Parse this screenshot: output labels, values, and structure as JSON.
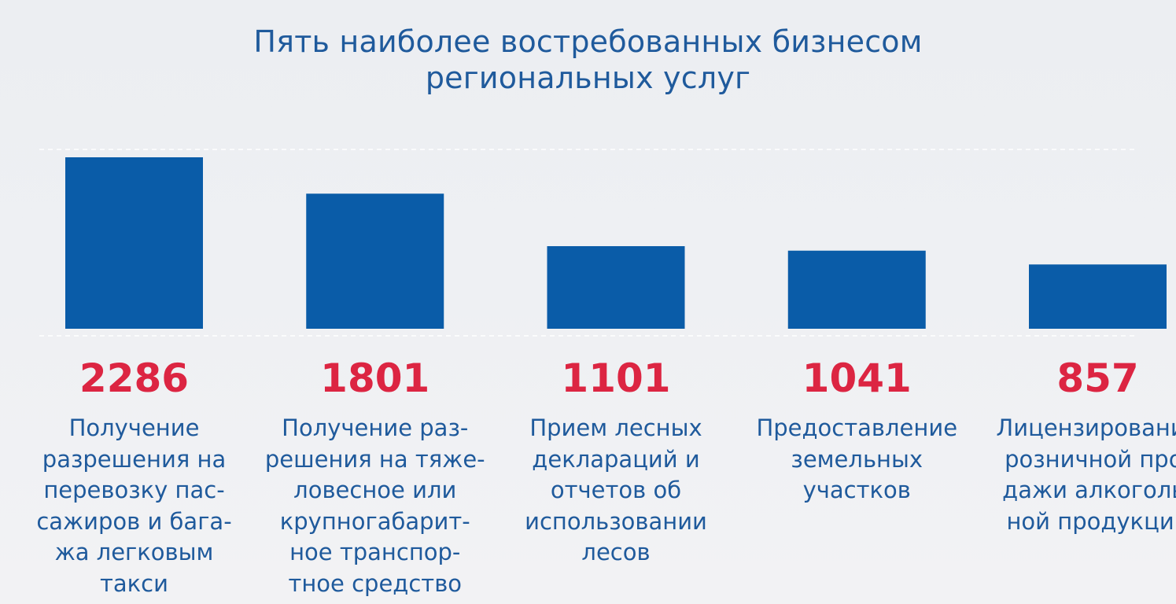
{
  "title_lines": [
    "Пять наиболее востребованных бизнесом",
    "региональных услуг"
  ],
  "colors": {
    "bar": "#0a5ca8",
    "value": "#dc2542",
    "text": "#1f5a9c",
    "gridline": "#ffffff"
  },
  "chart_data": {
    "type": "bar",
    "title": "Пять наиболее востребованных бизнесом региональных услуг",
    "categories": [
      "Получение разрешения на перевозку пассажиров и багажа легковым такси",
      "Получение разрешения на тяжеловесное или крупногабаритное транспортное средство",
      "Прием лесных деклараций и отчетов об использовании лесов",
      "Предоставление земельных участков",
      "Лицензирование розничной продажи алкогольной продукции"
    ],
    "values": [
      2286,
      1801,
      1101,
      1041,
      857
    ],
    "value_labels": [
      "2286",
      "1801",
      "1101",
      "1041",
      "857"
    ],
    "category_label_lines": [
      [
        "Получение",
        "разрешения на",
        "перевозку пас-",
        "сажиров и бага-",
        "жа легковым",
        "такси"
      ],
      [
        "Получение раз-",
        "решения на тяже-",
        "ловесное или",
        "крупногабарит-",
        "ное транспор-",
        "тное средство"
      ],
      [
        "Прием лесных",
        "деклараций и",
        "отчетов об",
        "использовании",
        "лесов"
      ],
      [
        "Предоставление",
        "земельных",
        "участков"
      ],
      [
        "Лицензирование",
        "розничной про-",
        "дажи алкоголь-",
        "ной продукции"
      ]
    ],
    "ylim": [
      0,
      2286
    ],
    "grid": true,
    "xlabel": "",
    "ylabel": ""
  }
}
